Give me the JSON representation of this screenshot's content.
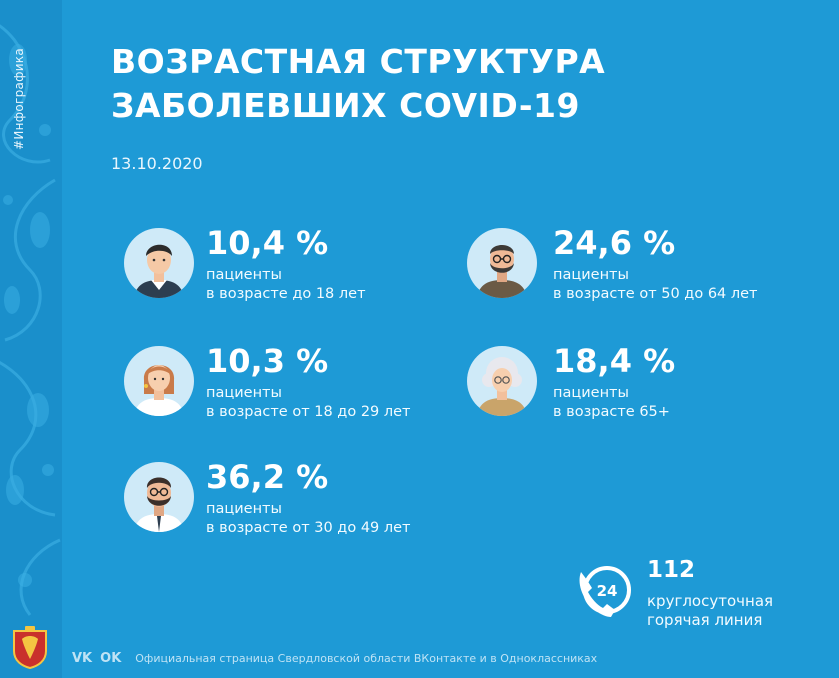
{
  "sidebar": {
    "tag": "#Инфографика"
  },
  "header": {
    "title_line1": "ВОЗРАСТНАЯ СТРУКТУРА",
    "title_line2": "ЗАБОЛЕВШИХ COVID-19",
    "date": "13.10.2020"
  },
  "groups": [
    {
      "percent": "10,4 %",
      "line1": "пациенты",
      "line2": "в возрасте до 18 лет",
      "icon": "teen-avatar-icon"
    },
    {
      "percent": "24,6 %",
      "line1": "пациенты",
      "line2": "в возрасте от 50 до 64 лет",
      "icon": "bearded-man-avatar-icon"
    },
    {
      "percent": "10,3 %",
      "line1": "пациенты",
      "line2": "в возрасте от 18 до 29 лет",
      "icon": "young-woman-avatar-icon"
    },
    {
      "percent": "18,4 %",
      "line1": "пациенты",
      "line2": "в возрасте 65+",
      "icon": "elderly-woman-avatar-icon"
    },
    {
      "percent": "36,2 %",
      "line1": "пациенты",
      "line2": "в возрасте от 30 до 49 лет",
      "icon": "man-with-glasses-avatar-icon"
    }
  ],
  "hotline": {
    "badge": "24",
    "number": "112",
    "line1": "круглосуточная",
    "line2": "горячая линия"
  },
  "footer": {
    "vk": "VK",
    "ok": "OK",
    "text": "Официальная страница Свердловской области ВКонтакте и в Одноклассниках"
  },
  "colors": {
    "background": "#1e9ad6",
    "sidebar": "#1a8fcb",
    "avatar_bg": "#cfeaf8",
    "text": "#ffffff"
  }
}
